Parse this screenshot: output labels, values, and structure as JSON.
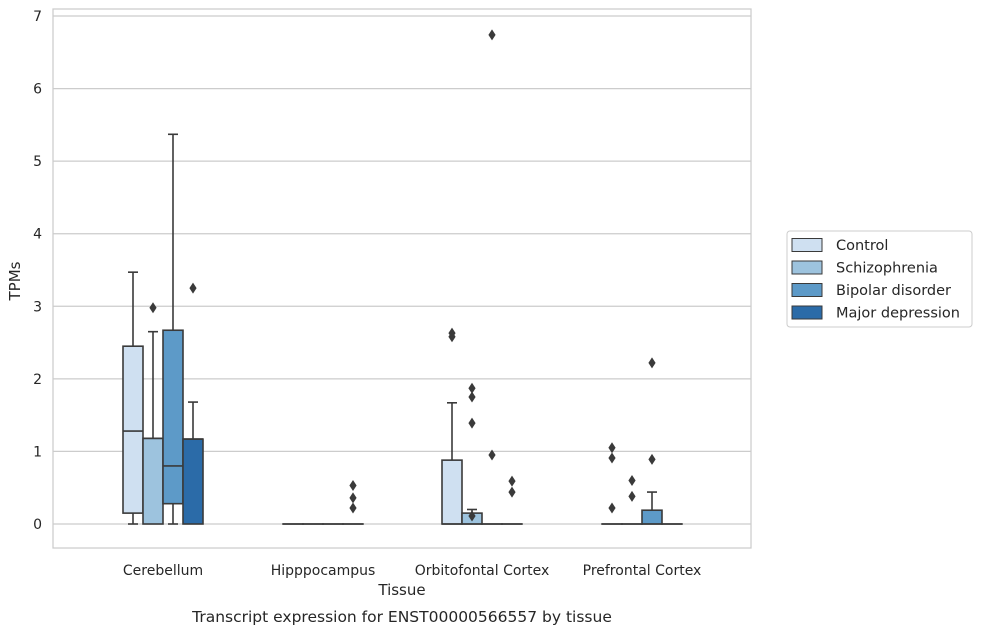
{
  "chart_data": {
    "type": "box",
    "title": "",
    "xlabel": "Tissue",
    "ylabel": "TPMs",
    "caption": "Transcript expression for ENST00000566557 by tissue",
    "ylim": [
      -0.33,
      7.1
    ],
    "yticks": [
      0,
      1,
      2,
      3,
      4,
      5,
      6,
      7
    ],
    "grid": true,
    "legend_position": "right",
    "categories": [
      "Cerebellum",
      "Hipppocampus",
      "Orbitofontal Cortex",
      "Prefrontal Cortex"
    ],
    "series": [
      {
        "name": "Control",
        "color": "#cfe0f1",
        "boxes": [
          {
            "q1": 0.15,
            "median": 1.28,
            "q3": 2.45,
            "whisker_low": 0,
            "whisker_high": 3.47,
            "outliers": []
          },
          {
            "q1": 0,
            "median": 0,
            "q3": 0,
            "whisker_low": 0,
            "whisker_high": 0,
            "outliers": []
          },
          {
            "q1": 0,
            "median": 0,
            "q3": 0.88,
            "whisker_low": 0,
            "whisker_high": 1.67,
            "outliers": [
              2.58,
              2.63
            ]
          },
          {
            "q1": 0,
            "median": 0,
            "q3": 0,
            "whisker_low": 0,
            "whisker_high": 0,
            "outliers": [
              0.22,
              0.91,
              1.05
            ]
          }
        ]
      },
      {
        "name": "Schizophrenia",
        "color": "#9dc3de",
        "boxes": [
          {
            "q1": 0,
            "median": 1.18,
            "q3": 1.18,
            "whisker_low": 0,
            "whisker_high": 2.65,
            "outliers": [
              2.98
            ]
          },
          {
            "q1": 0,
            "median": 0,
            "q3": 0,
            "whisker_low": 0,
            "whisker_high": 0,
            "outliers": []
          },
          {
            "q1": 0,
            "median": 0,
            "q3": 0.15,
            "whisker_low": 0,
            "whisker_high": 0.2,
            "outliers": [
              0.11,
              1.39,
              1.75,
              1.87
            ]
          },
          {
            "q1": 0,
            "median": 0,
            "q3": 0,
            "whisker_low": 0,
            "whisker_high": 0,
            "outliers": [
              0.38,
              0.6
            ]
          }
        ]
      },
      {
        "name": "Bipolar disorder",
        "color": "#5d9ac8",
        "boxes": [
          {
            "q1": 0.28,
            "median": 0.8,
            "q3": 2.67,
            "whisker_low": 0,
            "whisker_high": 5.37,
            "outliers": []
          },
          {
            "q1": 0,
            "median": 0,
            "q3": 0,
            "whisker_low": 0,
            "whisker_high": 0,
            "outliers": []
          },
          {
            "q1": 0,
            "median": 0,
            "q3": 0,
            "whisker_low": 0,
            "whisker_high": 0,
            "outliers": [
              0.95,
              6.74
            ]
          },
          {
            "q1": 0,
            "median": 0,
            "q3": 0.19,
            "whisker_low": 0,
            "whisker_high": 0.44,
            "outliers": [
              0.89,
              2.22
            ]
          }
        ]
      },
      {
        "name": "Major depression",
        "color": "#2b6ba8",
        "boxes": [
          {
            "q1": 0,
            "median": 1.17,
            "q3": 1.17,
            "whisker_low": 0,
            "whisker_high": 1.68,
            "outliers": [
              3.25
            ]
          },
          {
            "q1": 0,
            "median": 0,
            "q3": 0,
            "whisker_low": 0,
            "whisker_high": 0,
            "outliers": [
              0.22,
              0.36,
              0.53
            ]
          },
          {
            "q1": 0,
            "median": 0,
            "q3": 0,
            "whisker_low": 0,
            "whisker_high": 0,
            "outliers": [
              0.44,
              0.59
            ]
          },
          {
            "q1": 0,
            "median": 0,
            "q3": 0,
            "whisker_low": 0,
            "whisker_high": 0,
            "outliers": []
          }
        ]
      }
    ]
  }
}
